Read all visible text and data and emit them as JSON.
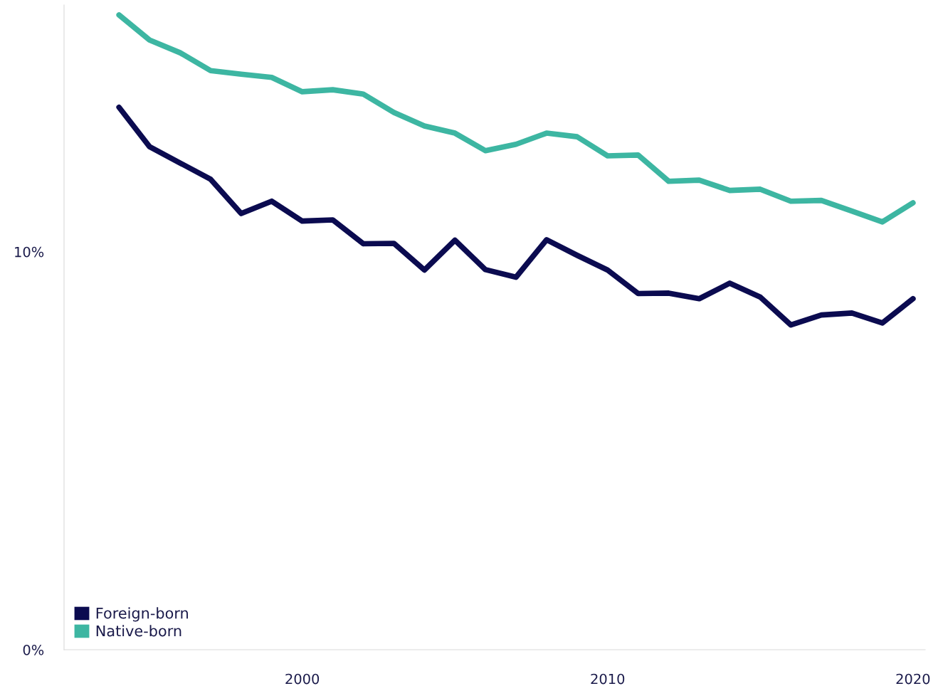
{
  "chart_data": {
    "type": "line",
    "x": [
      1994,
      1995,
      1996,
      1997,
      1998,
      1999,
      2000,
      2001,
      2002,
      2003,
      2004,
      2005,
      2006,
      2007,
      2008,
      2009,
      2010,
      2011,
      2012,
      2013,
      2014,
      2015,
      2016,
      2017,
      2018,
      2019,
      2020
    ],
    "series": [
      {
        "name": "Foreign-born",
        "color": "#0b0b50",
        "values": [
          13.63,
          12.64,
          12.23,
          11.82,
          10.96,
          11.27,
          10.77,
          10.8,
          10.2,
          10.21,
          9.54,
          10.29,
          9.55,
          9.36,
          10.3,
          9.91,
          9.54,
          8.95,
          8.96,
          8.82,
          9.21,
          8.86,
          8.16,
          8.41,
          8.46,
          8.21,
          8.82
        ]
      },
      {
        "name": "Native-born",
        "color": "#3db6a2",
        "values": [
          15.95,
          15.32,
          15.0,
          14.55,
          14.46,
          14.38,
          14.02,
          14.07,
          13.96,
          13.5,
          13.16,
          12.98,
          12.54,
          12.7,
          12.98,
          12.89,
          12.41,
          12.43,
          11.77,
          11.8,
          11.54,
          11.57,
          11.27,
          11.29,
          11.02,
          10.75,
          11.23
        ]
      }
    ],
    "xlim": [
      1992.2,
      2020.4
    ],
    "ylim": [
      0,
      16.2
    ],
    "xticks": [
      2000,
      2010,
      2020
    ],
    "yticks": [
      {
        "value": 0,
        "label": "0%"
      },
      {
        "value": 10,
        "label": "10%"
      }
    ],
    "grid": false,
    "legend": "bottom left",
    "marker": "none",
    "line_style": "solid"
  }
}
